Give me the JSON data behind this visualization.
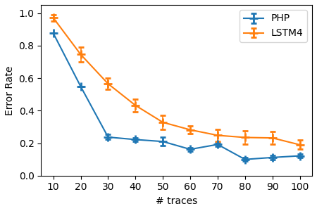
{
  "x": [
    10,
    20,
    30,
    40,
    50,
    60,
    70,
    80,
    90,
    100
  ],
  "php_y": [
    0.875,
    0.548,
    0.237,
    0.222,
    0.21,
    0.162,
    0.192,
    0.1,
    0.112,
    0.122
  ],
  "php_yerr": [
    0.0,
    0.0,
    0.015,
    0.012,
    0.025,
    0.012,
    0.012,
    0.012,
    0.012,
    0.012
  ],
  "lstm4_y": [
    0.97,
    0.745,
    0.565,
    0.432,
    0.328,
    0.282,
    0.248,
    0.235,
    0.232,
    0.19
  ],
  "lstm4_yerr": [
    0.02,
    0.045,
    0.035,
    0.04,
    0.042,
    0.022,
    0.038,
    0.042,
    0.04,
    0.028
  ],
  "php_color": "#1f77b4",
  "lstm4_color": "#ff7f0e",
  "xlabel": "# traces",
  "ylabel": "Error Rate",
  "ylim": [
    0.0,
    1.05
  ],
  "xticks": [
    10,
    20,
    30,
    40,
    50,
    60,
    70,
    80,
    90,
    100
  ],
  "legend_php": "PHP",
  "legend_lstm4": "LSTM4",
  "marker": "+"
}
